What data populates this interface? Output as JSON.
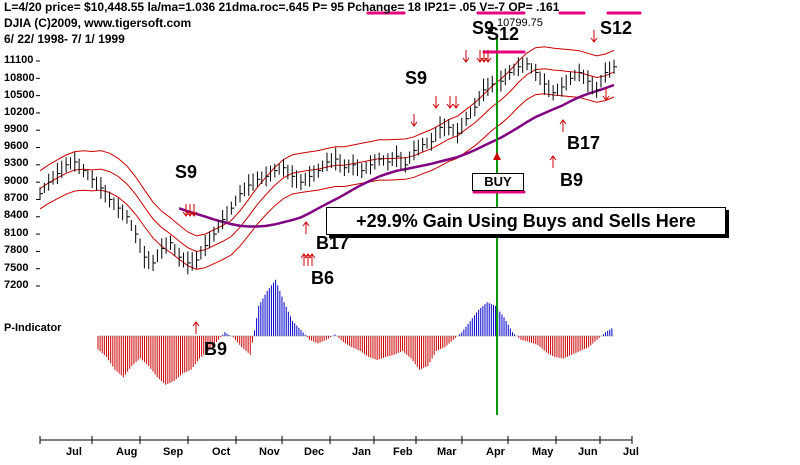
{
  "header": {
    "line1": "L=4/20  price= $10,448.55  la/ma=1.036 21dma.roc=.645 P=  95 Pchange=  18 IP21= .05 V=-7 OP= .161",
    "line2": "DJIA   (C)2009, www.tigersoft.com",
    "line3": "6/ 22/ 1998- 7/ 1/ 1999"
  },
  "price_note": "10799.75",
  "gain_text": "+29.9% Gain Using Buys and Sells Here",
  "buy_label": "BUY",
  "p_indicator_label": "P-Indicator",
  "signals": {
    "s9_sep": "S9",
    "s9_feb": "S9",
    "s9_apr": "S9",
    "s12_apr": "S12",
    "s12_jun": "S12",
    "b17_dec": "B17",
    "b6_dec": "B6",
    "b9_sep": "B9",
    "b17_may": "B17",
    "b9_may": "B9"
  },
  "colors": {
    "price_bars": "#000000",
    "bands": "#cc0000",
    "moving_average": "#800080",
    "indicator_negative": "#cc0000",
    "indicator_positive": "#0000cc",
    "buy_line": "#009900",
    "highlight": "#e6007e"
  },
  "chart_data": {
    "type": "line",
    "title": "DJIA",
    "subtitle": "6/ 22/ 1998- 7/ 1/ 1999",
    "ylim": [
      7000,
      11500
    ],
    "y_ticks": [
      7200,
      7500,
      7800,
      8100,
      8400,
      8700,
      9000,
      9300,
      9600,
      9900,
      10200,
      10500,
      10800,
      11100
    ],
    "x_ticks": [
      "Jul",
      "Aug",
      "Sep",
      "Oct",
      "Nov",
      "Dec",
      "Jan",
      "Feb",
      "Mar",
      "Apr",
      "May",
      "Jun",
      "Jul"
    ],
    "series": [
      {
        "values": [
          8800,
          9000,
          9150,
          9300,
          9350,
          9200,
          9050,
          8900,
          8700,
          8550,
          8400,
          8100,
          7700,
          7600,
          7850,
          7950,
          7700,
          7600,
          7650,
          7900,
          8100,
          8350,
          8550,
          8800,
          8950,
          9050,
          9100,
          9200,
          9250,
          9100,
          9000,
          9100,
          9200,
          9350,
          9400,
          9250,
          9300,
          9200,
          9300,
          9400,
          9350,
          9450,
          9300,
          9550,
          9650,
          9700,
          9950,
          9950,
          9850,
          10100,
          10300,
          10600,
          10700,
          10750,
          10900,
          11000,
          11050,
          10900,
          10700,
          10550,
          10650,
          10800,
          10900,
          10750,
          10600,
          10900,
          11000
        ]
      },
      {
        "name": "P-Indicator",
        "values": [
          -18,
          -28,
          -45,
          -55,
          -40,
          -30,
          -40,
          -55,
          -65,
          -60,
          -50,
          -45,
          -30,
          -20,
          -8,
          5,
          -2,
          -15,
          -25,
          40,
          60,
          75,
          45,
          20,
          8,
          -5,
          -10,
          -5,
          2,
          -8,
          -15,
          -20,
          -28,
          -32,
          -28,
          -25,
          -20,
          -30,
          -45,
          -40,
          -20,
          -15,
          -5,
          5,
          20,
          35,
          45,
          40,
          25,
          5,
          -5,
          -8,
          -12,
          -22,
          -28,
          -30,
          -25,
          -20,
          -15,
          -5,
          5,
          12
        ]
      }
    ]
  }
}
